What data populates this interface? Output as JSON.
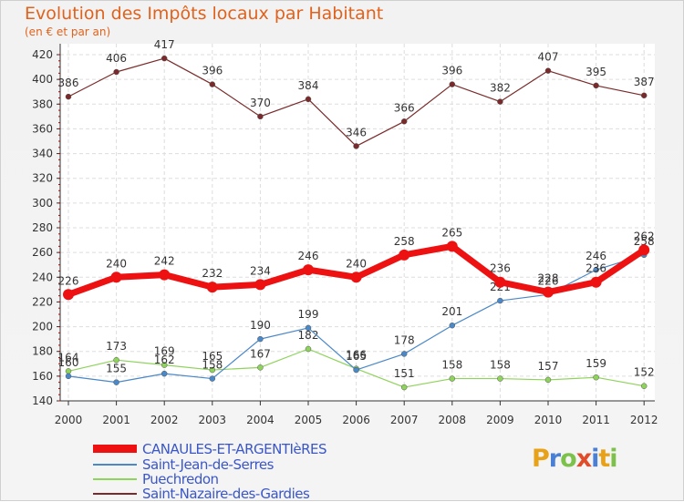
{
  "header": {
    "title": "Evolution des Impôts locaux par Habitant",
    "subtitle": "(en € et par an)"
  },
  "logo": {
    "text": "Proxiti",
    "colors": [
      "#e8a21a",
      "#4a7fd6",
      "#7cc24a",
      "#e04b2a",
      "#4a7fd6",
      "#e8a21a",
      "#7cc24a"
    ]
  },
  "chart_data": {
    "type": "line",
    "title": "Evolution des Impôts locaux par Habitant",
    "subtitle": "(en € et par an)",
    "xlabel": "",
    "ylabel": "",
    "categories": [
      "2000",
      "2001",
      "2002",
      "2003",
      "2004",
      "2005",
      "2006",
      "2007",
      "2008",
      "2009",
      "2010",
      "2011",
      "2012"
    ],
    "ylim": [
      140,
      420
    ],
    "yticks": [
      140,
      160,
      180,
      200,
      220,
      240,
      260,
      280,
      300,
      320,
      340,
      360,
      380,
      400,
      420
    ],
    "grid": true,
    "series": [
      {
        "name": "Saint-Nazaire-des-Gardies",
        "color": "#7a2a2a",
        "width": 1.2,
        "values": [
          386,
          406,
          417,
          396,
          370,
          384,
          346,
          366,
          396,
          382,
          407,
          395,
          387
        ]
      },
      {
        "name": "Puechredon",
        "color": "#8ed35a",
        "width": 1.2,
        "values": [
          164,
          173,
          169,
          165,
          167,
          182,
          166,
          151,
          158,
          158,
          157,
          159,
          152
        ]
      },
      {
        "name": "Saint-Jean-de-Serres",
        "color": "#4a88c8",
        "width": 1.2,
        "values": [
          160,
          155,
          162,
          158,
          190,
          199,
          165,
          178,
          201,
          221,
          226,
          246,
          258
        ]
      },
      {
        "name": "CANAULES-ET-ARGENTIèRES",
        "color": "#ee1111",
        "width": 7,
        "values": [
          226,
          240,
          242,
          232,
          234,
          246,
          240,
          258,
          265,
          236,
          228,
          236,
          262
        ]
      }
    ],
    "legend": [
      "CANAULES-ET-ARGENTIèRES",
      "Saint-Jean-de-Serres",
      "Puechredon",
      "Saint-Nazaire-des-Gardies"
    ],
    "legend_position": "bottom-left"
  }
}
